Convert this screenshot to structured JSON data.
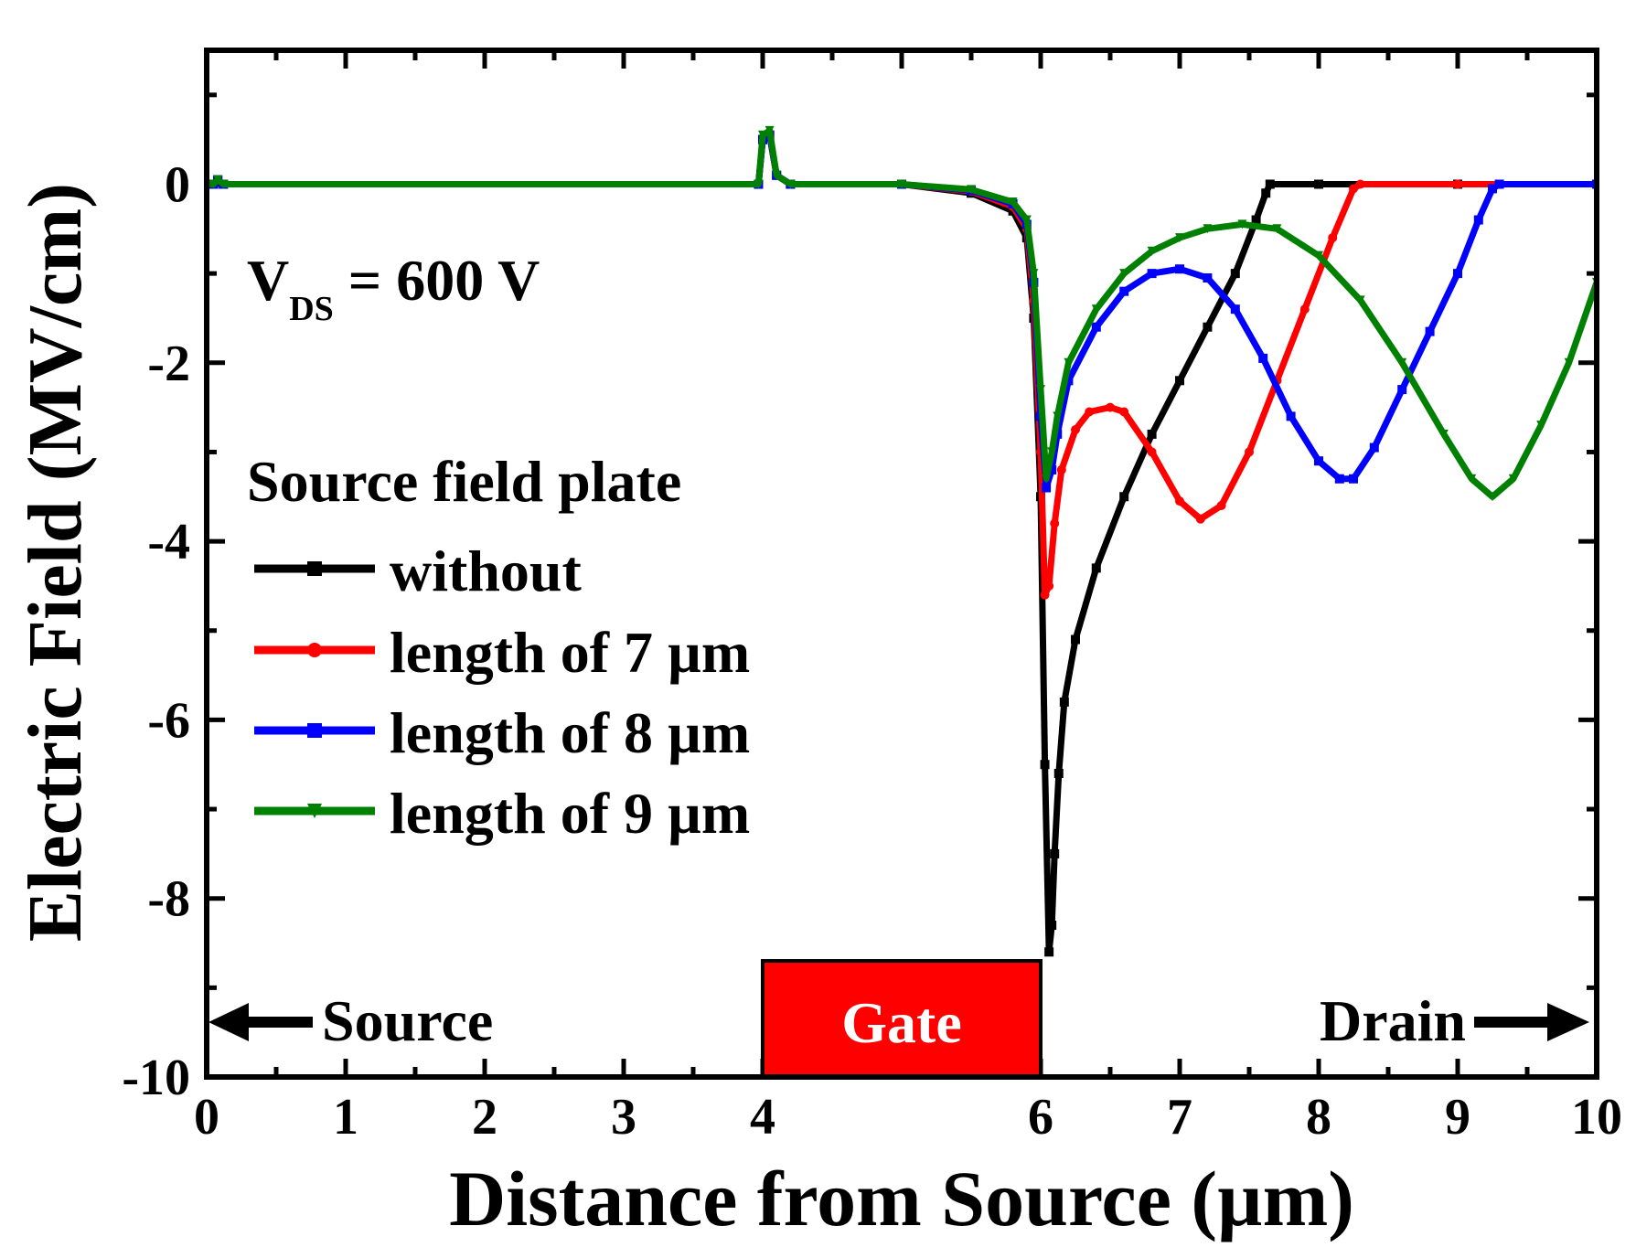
{
  "chart_data": {
    "type": "line",
    "title": "",
    "xlabel": "Distance from Source (µm)",
    "ylabel": "Electric Field (MV/cm)",
    "xlim": [
      0,
      10
    ],
    "ylim": [
      -10,
      1.5
    ],
    "x_ticks": [
      0,
      1,
      2,
      3,
      4,
      6,
      7,
      8,
      9,
      10
    ],
    "x_tick_labels": [
      "0",
      "1",
      "2",
      "3",
      "4",
      "6",
      "7",
      "8",
      "9",
      "10"
    ],
    "y_ticks": [
      0,
      -2,
      -4,
      -6,
      -8,
      -10
    ],
    "y_tick_labels": [
      "0",
      "-2",
      "-4",
      "-6",
      "-8",
      "-10"
    ],
    "grid": false,
    "legend_title": "Source field plate",
    "legend_position": "left",
    "annotations": {
      "vds_main": "V",
      "vds_sub": "DS",
      "vds_rest": " = 600 V",
      "source": "Source",
      "gate": "Gate",
      "drain": "Drain"
    },
    "gate_region": [
      4,
      6
    ],
    "series": [
      {
        "name": "without",
        "color": "#000000",
        "marker": "square",
        "x": [
          0,
          0.05,
          0.08,
          0.12,
          3.97,
          4.0,
          4.05,
          4.1,
          4.2,
          5.0,
          5.5,
          5.8,
          5.9,
          5.95,
          6.0,
          6.03,
          6.06,
          6.08,
          6.1,
          6.13,
          6.17,
          6.25,
          6.4,
          6.6,
          6.8,
          7.0,
          7.2,
          7.4,
          7.55,
          7.62,
          7.65,
          8.0,
          9.0,
          10.0
        ],
        "values": [
          0,
          0,
          0.05,
          0,
          0,
          0.5,
          0.55,
          0.1,
          0,
          0,
          -0.1,
          -0.3,
          -0.6,
          -1.5,
          -3.5,
          -6.5,
          -8.6,
          -8.3,
          -7.5,
          -6.6,
          -5.8,
          -5.1,
          -4.3,
          -3.5,
          -2.8,
          -2.2,
          -1.6,
          -1.0,
          -0.4,
          -0.1,
          0,
          0,
          0,
          0
        ]
      },
      {
        "name": "length of 7 µm",
        "color": "#ff0000",
        "marker": "circle",
        "x": [
          0,
          0.05,
          0.08,
          0.12,
          3.97,
          4.0,
          4.05,
          4.1,
          4.2,
          5.0,
          5.5,
          5.8,
          5.9,
          5.95,
          6.0,
          6.03,
          6.06,
          6.1,
          6.15,
          6.25,
          6.35,
          6.5,
          6.6,
          6.8,
          7.0,
          7.15,
          7.3,
          7.5,
          7.7,
          7.9,
          8.1,
          8.25,
          8.3,
          9.0,
          10.0
        ],
        "values": [
          0,
          0,
          0.05,
          0,
          0,
          0.5,
          0.55,
          0.1,
          0,
          0,
          -0.08,
          -0.25,
          -0.5,
          -1.3,
          -3.0,
          -4.6,
          -4.5,
          -3.8,
          -3.2,
          -2.75,
          -2.55,
          -2.5,
          -2.55,
          -3.0,
          -3.55,
          -3.75,
          -3.6,
          -3.0,
          -2.2,
          -1.4,
          -0.6,
          -0.05,
          0,
          0,
          0
        ]
      },
      {
        "name": "length of 8 µm",
        "color": "#0000ff",
        "marker": "square",
        "x": [
          0,
          0.05,
          0.08,
          0.12,
          3.97,
          4.0,
          4.05,
          4.1,
          4.2,
          5.0,
          5.5,
          5.8,
          5.9,
          5.95,
          6.0,
          6.04,
          6.08,
          6.12,
          6.2,
          6.4,
          6.6,
          6.8,
          7.0,
          7.2,
          7.4,
          7.6,
          7.8,
          8.0,
          8.15,
          8.25,
          8.4,
          8.6,
          8.8,
          9.0,
          9.15,
          9.25,
          9.3,
          10.0
        ],
        "values": [
          0,
          0,
          0.05,
          0,
          0,
          0.5,
          0.55,
          0.1,
          0,
          0,
          -0.07,
          -0.22,
          -0.45,
          -1.1,
          -2.6,
          -3.4,
          -3.2,
          -2.8,
          -2.2,
          -1.6,
          -1.2,
          -1.0,
          -0.95,
          -1.05,
          -1.4,
          -1.95,
          -2.6,
          -3.1,
          -3.3,
          -3.3,
          -2.95,
          -2.3,
          -1.65,
          -1.0,
          -0.4,
          -0.05,
          0,
          0
        ]
      },
      {
        "name": "length of 9 µm",
        "color": "#008000",
        "marker": "triangle-down",
        "x": [
          0,
          0.05,
          0.08,
          0.12,
          3.97,
          4.0,
          4.05,
          4.1,
          4.2,
          5.0,
          5.5,
          5.8,
          5.9,
          5.95,
          6.0,
          6.04,
          6.08,
          6.12,
          6.2,
          6.4,
          6.6,
          6.8,
          7.0,
          7.2,
          7.45,
          7.7,
          8.0,
          8.3,
          8.6,
          8.9,
          9.1,
          9.25,
          9.4,
          9.6,
          9.8,
          10.0
        ],
        "values": [
          0,
          0,
          0.05,
          0,
          0,
          0.55,
          0.6,
          0.1,
          0,
          0,
          -0.06,
          -0.2,
          -0.4,
          -1.0,
          -2.3,
          -3.3,
          -3.0,
          -2.6,
          -2.0,
          -1.4,
          -1.0,
          -0.75,
          -0.6,
          -0.5,
          -0.45,
          -0.5,
          -0.8,
          -1.3,
          -2.0,
          -2.8,
          -3.3,
          -3.5,
          -3.3,
          -2.7,
          -2.0,
          -1.1
        ]
      }
    ]
  }
}
